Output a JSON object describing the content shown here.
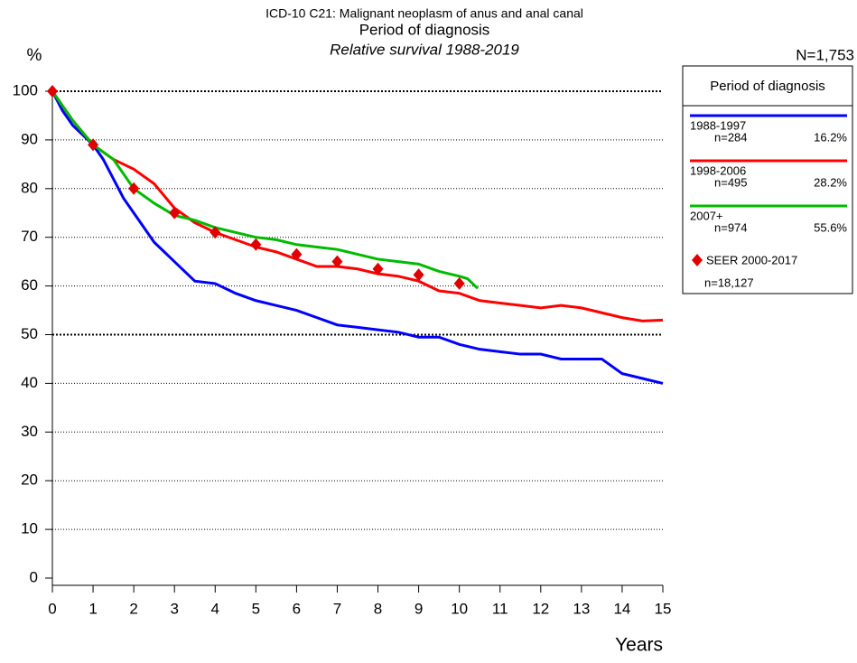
{
  "chart_data": {
    "type": "line",
    "title": "ICD-10 C21: Malignant neoplasm of anus and anal canal",
    "subtitle": "Period of diagnosis",
    "subtitle2": "Relative survival 1988-2019",
    "y_label": "%",
    "x_label": "Years",
    "total": "N=1,753",
    "legend_title": "Period of diagnosis",
    "xlim": [
      0,
      15
    ],
    "xticks": [
      0,
      1,
      2,
      3,
      4,
      5,
      6,
      7,
      8,
      9,
      10,
      11,
      12,
      13,
      14,
      15
    ],
    "ylim": [
      0,
      100
    ],
    "yticks": [
      0,
      10,
      20,
      30,
      40,
      50,
      60,
      70,
      80,
      90,
      100
    ],
    "grid": true,
    "series": [
      {
        "name": "1988-1997",
        "count": "n=284",
        "share": "16.2%",
        "color": "#0000ff",
        "x": [
          0,
          0.25,
          0.5,
          1,
          1.25,
          1.5,
          1.75,
          2,
          2.25,
          2.5,
          2.75,
          3,
          3.25,
          3.5,
          4,
          4.5,
          5,
          5.5,
          6,
          6.5,
          7,
          7.5,
          8,
          8.5,
          9,
          9.5,
          10,
          10.5,
          11,
          11.5,
          12,
          12.5,
          13,
          13.5,
          14,
          14.5,
          15
        ],
        "values": [
          100,
          96,
          93,
          89,
          86,
          82,
          78,
          75,
          72,
          69,
          67,
          65,
          63,
          61,
          60.5,
          58.5,
          57,
          56,
          55,
          53.5,
          52,
          51.5,
          51,
          50.5,
          49.5,
          49.5,
          48,
          47,
          46.5,
          46,
          46,
          45,
          45,
          45,
          42,
          41,
          40
        ]
      },
      {
        "name": "1998-2006",
        "count": "n=495",
        "share": "28.2%",
        "color": "#ff0000",
        "x": [
          0,
          0.5,
          1,
          1.5,
          2,
          2.5,
          3,
          3.5,
          4,
          4.5,
          5,
          5.5,
          6,
          6.5,
          7,
          7.5,
          8,
          8.5,
          9,
          9.5,
          10,
          10.5,
          11,
          11.5,
          12,
          12.5,
          13,
          13.5,
          14,
          14.5,
          15
        ],
        "values": [
          100,
          94,
          89,
          86,
          84,
          81,
          76,
          73,
          71,
          69.5,
          68,
          67,
          65.5,
          64,
          64,
          63.5,
          62.5,
          62,
          61,
          59,
          58.5,
          57,
          56.5,
          56,
          55.5,
          56,
          55.5,
          54.5,
          53.5,
          52.8,
          53
        ]
      },
      {
        "name": "2007+",
        "count": "n=974",
        "share": "55.6%",
        "color": "#00bb00",
        "x": [
          0,
          0.5,
          1,
          1.5,
          2,
          2.5,
          3,
          3.5,
          4,
          4.5,
          5,
          5.5,
          6,
          6.5,
          7,
          7.5,
          8,
          8.5,
          9,
          9.5,
          10,
          10.2,
          10.45
        ],
        "values": [
          100,
          94,
          89,
          86,
          80,
          77,
          74.5,
          73.5,
          72,
          71,
          70,
          69.5,
          68.5,
          68,
          67.5,
          66.5,
          65.5,
          65,
          64.5,
          63,
          62,
          61.5,
          59.5
        ]
      }
    ],
    "reference": {
      "name": "SEER 2000-2017",
      "count": "n=18,127",
      "color": "#e00000",
      "x": [
        0,
        1,
        2,
        3,
        4,
        5,
        6,
        7,
        8,
        9,
        10
      ],
      "values": [
        100,
        89,
        80,
        75,
        71,
        68.5,
        66.5,
        65,
        63.5,
        62.3,
        60.5
      ]
    }
  }
}
